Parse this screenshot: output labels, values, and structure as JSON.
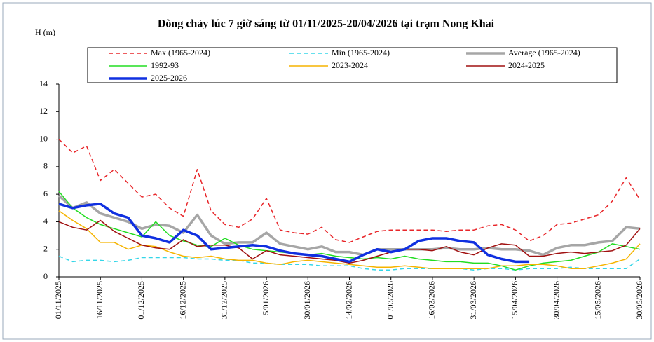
{
  "chart_data": {
    "type": "line",
    "title": "Dòng chảy lúc 7 giờ sáng từ 01/11/2025-20/04/2026 tại trạm Nong Khai",
    "y_label": "H (m)",
    "categories": [
      "01/11/2025",
      null,
      null,
      "16/11/2025",
      null,
      null,
      "01/12/2025",
      null,
      null,
      "16/12/2025",
      null,
      null,
      "31/12/2025",
      null,
      null,
      "15/01/2026",
      null,
      null,
      "30/01/2026",
      null,
      null,
      "14/02/2026",
      null,
      null,
      "01/03/2026",
      null,
      null,
      "16/03/2026",
      null,
      null,
      "31/03/2026",
      null,
      null,
      "15/04/2026",
      null,
      null,
      "30/04/2026",
      null,
      null,
      "15/05/2026",
      null,
      null,
      "30/05/2026"
    ],
    "ylim": [
      0,
      14
    ],
    "yticks": [
      0,
      2,
      4,
      6,
      8,
      10,
      12,
      14
    ],
    "series": [
      {
        "name": "Max (1965-2024)",
        "color": "#e8262a",
        "line_style": "dashed",
        "values": [
          10,
          9,
          9.5,
          7,
          7.8,
          6.8,
          5.8,
          6,
          5,
          4.4,
          7.8,
          4.8,
          3.8,
          3.6,
          4.2,
          5.7,
          3.4,
          3.2,
          3.1,
          3.6,
          2.7,
          2.5,
          2.9,
          3.3,
          3.4,
          3.4,
          3.4,
          3.4,
          3.3,
          3.4,
          3.4,
          3.7,
          3.8,
          3.4,
          2.6,
          3,
          3.8,
          3.9,
          4.2,
          4.5,
          5.5,
          7.2,
          5.6
        ]
      },
      {
        "name": "Min (1965-2024)",
        "color": "#33d6e8",
        "line_style": "dashed",
        "values": [
          1.5,
          1.1,
          1.2,
          1.2,
          1.1,
          1.2,
          1.4,
          1.4,
          1.4,
          1.4,
          1.3,
          1.3,
          1.2,
          1.2,
          1.0,
          1.0,
          0.9,
          0.9,
          0.9,
          0.8,
          0.8,
          0.8,
          0.6,
          0.5,
          0.5,
          0.6,
          0.6,
          0.6,
          0.6,
          0.6,
          0.5,
          0.6,
          0.6,
          0.5,
          0.6,
          0.6,
          0.6,
          0.7,
          0.6,
          0.6,
          0.6,
          0.6,
          1.3
        ]
      },
      {
        "name": "Average (1965-2024)",
        "color": "#a6a6a6",
        "line_style": "thick",
        "values": [
          5.9,
          5.0,
          5.4,
          4.6,
          4.3,
          4.0,
          3.5,
          3.8,
          3.7,
          3.2,
          4.5,
          3.0,
          2.4,
          2.5,
          2.5,
          3.2,
          2.4,
          2.2,
          2.0,
          2.2,
          1.8,
          1.8,
          1.6,
          2.0,
          2.0,
          2.0,
          2.0,
          2.0,
          2.1,
          2.0,
          2.0,
          2.1,
          2.0,
          2.0,
          1.9,
          1.6,
          2.1,
          2.3,
          2.3,
          2.5,
          2.6,
          3.6,
          3.5
        ]
      },
      {
        "name": "1992-93",
        "color": "#22dd22",
        "line_style": "solid",
        "values": [
          6.2,
          5.0,
          4.3,
          3.8,
          3.5,
          3.2,
          2.9,
          4.0,
          3.0,
          2.6,
          2.3,
          2.2,
          2.8,
          2.3,
          2.0,
          1.9,
          1.8,
          1.7,
          1.6,
          1.7,
          1.5,
          1.4,
          1.3,
          1.4,
          1.3,
          1.5,
          1.3,
          1.2,
          1.1,
          1.1,
          1.0,
          1.0,
          0.8,
          0.5,
          0.8,
          1.0,
          1.1,
          1.2,
          1.5,
          1.8,
          2.4,
          2.2,
          2.0
        ]
      },
      {
        "name": "2023-2024",
        "color": "#f5b400",
        "line_style": "solid",
        "values": [
          4.8,
          4.1,
          3.5,
          2.5,
          2.5,
          2.0,
          2.3,
          2.2,
          1.8,
          1.5,
          1.4,
          1.5,
          1.3,
          1.2,
          1.2,
          1.0,
          0.9,
          1.1,
          1.2,
          1.1,
          1.0,
          0.9,
          0.8,
          0.7,
          0.7,
          0.8,
          0.7,
          0.6,
          0.6,
          0.6,
          0.6,
          0.6,
          0.8,
          0.8,
          0.9,
          0.9,
          0.8,
          0.6,
          0.6,
          0.8,
          1.0,
          1.3,
          2.4
        ]
      },
      {
        "name": "2024-2025",
        "color": "#a01010",
        "line_style": "solid",
        "values": [
          4.0,
          3.6,
          3.4,
          4.1,
          3.3,
          2.8,
          2.3,
          2.1,
          2.0,
          2.7,
          2.2,
          2.3,
          2.3,
          2.1,
          1.3,
          1.9,
          1.6,
          1.5,
          1.4,
          1.3,
          1.2,
          1.0,
          1.2,
          1.5,
          1.8,
          2.0,
          2.0,
          1.9,
          2.2,
          1.8,
          1.6,
          2.1,
          2.4,
          2.3,
          1.5,
          1.5,
          1.7,
          1.8,
          1.7,
          1.8,
          1.9,
          2.3,
          3.5
        ]
      },
      {
        "name": "2025-2026",
        "color": "#1030e0",
        "line_style": "thick",
        "values": [
          5.3,
          5.0,
          5.2,
          5.3,
          4.6,
          4.3,
          3.0,
          2.8,
          2.5,
          3.4,
          3.0,
          2.0,
          2.1,
          2.2,
          2.3,
          2.2,
          1.9,
          1.7,
          1.6,
          1.5,
          1.3,
          1.1,
          1.6,
          2.0,
          1.8,
          2.0,
          2.6,
          2.8,
          2.8,
          2.6,
          2.5,
          1.6,
          1.3,
          1.1,
          1.1,
          null,
          null,
          null,
          null,
          null,
          null,
          null,
          null
        ]
      }
    ]
  }
}
